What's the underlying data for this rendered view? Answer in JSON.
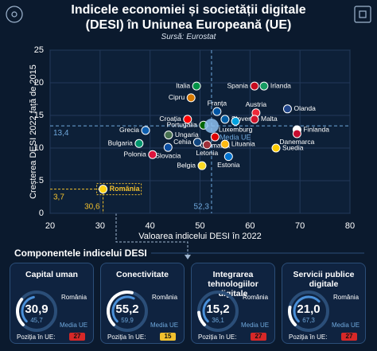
{
  "chart_data": {
    "type": "scatter",
    "title": "Indicele economiei și societății digitale (DESI) în Uniunea Europeană (UE)",
    "subtitle": "Sursă: Eurostat",
    "xlabel": "Valoarea indicelui DESI în 2022",
    "ylabel": "Creșterea DESI 2022 față de 2015",
    "xlim": [
      20,
      80
    ],
    "xticks": [
      20,
      30,
      40,
      50,
      60,
      70,
      80
    ],
    "ylim": [
      0,
      25
    ],
    "yticks": [
      0,
      5,
      10,
      15,
      20,
      25
    ],
    "grid": true,
    "point_labels": [
      "Italia",
      "Spania",
      "Irlanda",
      "Cipru",
      "Franța",
      "Austria",
      "Olanda",
      "Portugalia",
      "Slovenia",
      "Croația",
      "Malta",
      "Germania",
      "Ungaria",
      "Luxemburg",
      "Finlanda",
      "Danemarca",
      "Suedia",
      "Grecia",
      "Bulgaria",
      "Cehia",
      "Lituania",
      "Letonia",
      "Polonia",
      "Slovacia",
      "Belgia",
      "Estonia",
      "România"
    ],
    "x": [
      49.3,
      60.9,
      62.8,
      48.2,
      53.4,
      61.2,
      67.5,
      50.7,
      55.0,
      47.5,
      60.9,
      53.0,
      43.7,
      57.1,
      69.4,
      69.4,
      65.2,
      39.1,
      37.8,
      49.5,
      55.0,
      51.4,
      40.5,
      43.6,
      50.4,
      55.7,
      30.6
    ],
    "values": [
      19.5,
      19.5,
      19.5,
      17.7,
      15.6,
      15.4,
      16.0,
      13.5,
      14.4,
      14.4,
      14.4,
      11.7,
      12.0,
      14.1,
      12.8,
      12.2,
      10.0,
      12.7,
      10.7,
      10.9,
      10.6,
      10.5,
      9.0,
      10.1,
      7.3,
      8.7,
      3.7
    ],
    "point_colors": [
      "#009246",
      "#c60b1e",
      "#169b62",
      "#d57800",
      "#0055a4",
      "#ed2939",
      "#21468b",
      "#006600",
      "#005da4",
      "#ff0000",
      "#cf142b",
      "#dd0000",
      "#477050",
      "#00a1de",
      "#ffffff",
      "#c60c30",
      "#fecc00",
      "#0d5eaf",
      "#00966e",
      "#11457e",
      "#fdb913",
      "#9e3039",
      "#dc143c",
      "#0b4ea2",
      "#fdda24",
      "#0072ce",
      "#fcd116"
    ],
    "eu_mean": {
      "name": "Media UE",
      "x": 52.3,
      "y": 13.4,
      "x_label": "52,3",
      "y_label": "13,4",
      "color": "#6fa8dc"
    },
    "highlight": {
      "name": "România",
      "x_label": "30,6",
      "y_label": "3,7",
      "color": "#f2c12e"
    }
  },
  "components": {
    "title": "Componentele indicelui DESI",
    "lim": [
      0,
      100
    ],
    "cards": [
      {
        "title": "Capital uman",
        "value": 30.9,
        "value_label": "30,9",
        "name": "România",
        "eu_value": 45.7,
        "eu_label": "45,7",
        "eu_name": "Media UE",
        "rank_label": "Poziția în UE:",
        "rank": 27,
        "rank_color": "#d62828"
      },
      {
        "title": "Conectivitate",
        "value": 55.2,
        "value_label": "55,2",
        "name": "România",
        "eu_value": 59.9,
        "eu_label": "59,9",
        "eu_name": "Media UE",
        "rank_label": "Poziția în UE:",
        "rank": 15,
        "rank_color": "#f2c12e"
      },
      {
        "title": "Integrarea tehnologiilor digitale",
        "value": 15.2,
        "value_label": "15,2",
        "name": "România",
        "eu_value": 36.1,
        "eu_label": "36,1",
        "eu_name": "Media UE",
        "rank_label": "Poziția în UE:",
        "rank": 27,
        "rank_color": "#d62828"
      },
      {
        "title": "Servicii publice digitale",
        "value": 21.0,
        "value_label": "21,0",
        "name": "România",
        "eu_value": 67.3,
        "eu_label": "67,3",
        "eu_name": "Media UE",
        "rank_label": "Poziția în UE:",
        "rank": 27,
        "rank_color": "#d62828"
      }
    ]
  }
}
